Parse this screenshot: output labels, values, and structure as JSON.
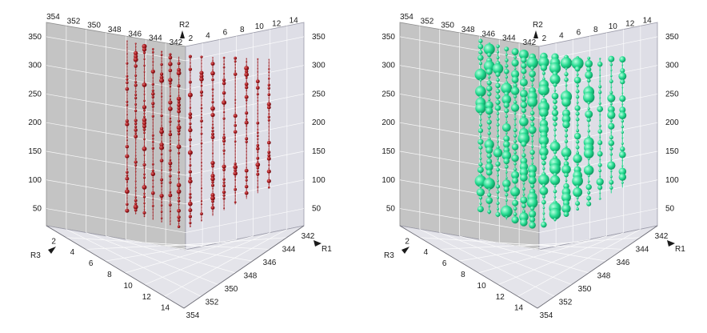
{
  "chart_data": [
    {
      "type": "scatter",
      "subtype": "3d-bubble",
      "title": "",
      "axes": {
        "R1": {
          "label": "R1",
          "ticks": [
            "342",
            "344",
            "346",
            "348",
            "350",
            "352",
            "354"
          ]
        },
        "R2": {
          "label": "R2",
          "ticks_left": [
            "354",
            "352",
            "350",
            "348",
            "346",
            "344",
            "342"
          ],
          "ticks_right": [
            "2",
            "4",
            "6",
            "8",
            "10",
            "12",
            "14"
          ]
        },
        "R3": {
          "label": "R3",
          "ticks": [
            "2",
            "4",
            "6",
            "8",
            "10",
            "12",
            "14"
          ]
        },
        "vertical": {
          "label": "",
          "ticks": [
            "50",
            "100",
            "150",
            "200",
            "250",
            "300",
            "350"
          ]
        }
      },
      "grid": true,
      "marker_color": "#a3161b",
      "marker_size_scale": "small",
      "columns_r2": [
        348,
        347,
        346,
        345,
        344,
        343,
        342,
        2,
        3,
        4,
        5,
        6,
        7,
        8,
        9
      ],
      "vertical_range": [
        20,
        375
      ]
    },
    {
      "type": "scatter",
      "subtype": "3d-bubble",
      "title": "",
      "axes": {
        "R1": {
          "label": "R1",
          "ticks": [
            "342",
            "344",
            "346",
            "348",
            "350",
            "352",
            "354"
          ]
        },
        "R2": {
          "label": "R2",
          "ticks_left": [
            "354",
            "352",
            "350",
            "348",
            "346",
            "344",
            "342"
          ],
          "ticks_right": [
            "2",
            "4",
            "6",
            "8",
            "10",
            "12",
            "14"
          ]
        },
        "R3": {
          "label": "R3",
          "ticks": [
            "2",
            "4",
            "6",
            "8",
            "10",
            "12",
            "14"
          ]
        },
        "vertical": {
          "label": "",
          "ticks": [
            "50",
            "100",
            "150",
            "200",
            "250",
            "300",
            "350"
          ]
        }
      },
      "grid": true,
      "marker_color": "#22d98e",
      "marker_size_scale": "large",
      "columns_r2": [
        348,
        347,
        346,
        345,
        344,
        343,
        342,
        2,
        3,
        4,
        5,
        6,
        7,
        8,
        9
      ],
      "vertical_range": [
        20,
        375
      ]
    }
  ]
}
